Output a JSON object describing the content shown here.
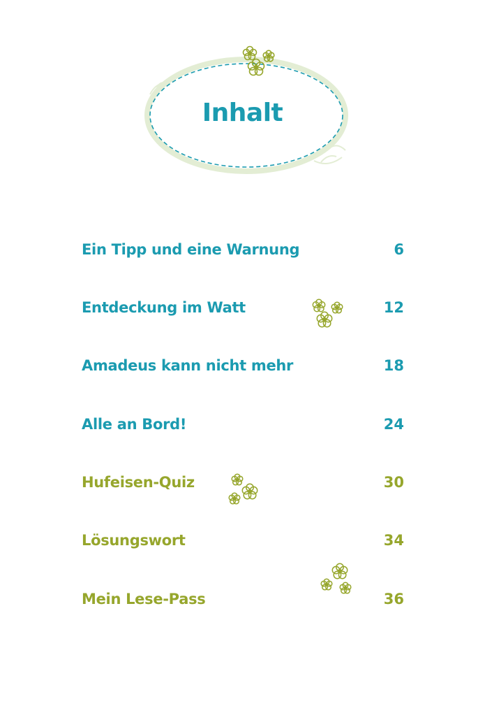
{
  "title": "Inhalt",
  "colors": {
    "teal": "#1b9bb0",
    "olive": "#96a62c",
    "pale_green": "#e3edd4"
  },
  "toc": [
    {
      "label": "Ein Tipp und eine Warnung",
      "page": "6",
      "color": "teal"
    },
    {
      "label": "Entdeckung im Watt",
      "page": "12",
      "color": "teal"
    },
    {
      "label": "Amadeus kann nicht mehr",
      "page": "18",
      "color": "teal"
    },
    {
      "label": "Alle an Bord!",
      "page": "24",
      "color": "teal"
    },
    {
      "label": "Hufeisen-Quiz",
      "page": "30",
      "color": "olive"
    },
    {
      "label": "Lösungswort",
      "page": "34",
      "color": "olive"
    },
    {
      "label": "Mein Lese-Pass",
      "page": "36",
      "color": "olive"
    }
  ],
  "decorations": [
    "dashed-oval-frame",
    "flower-cluster-icon"
  ]
}
